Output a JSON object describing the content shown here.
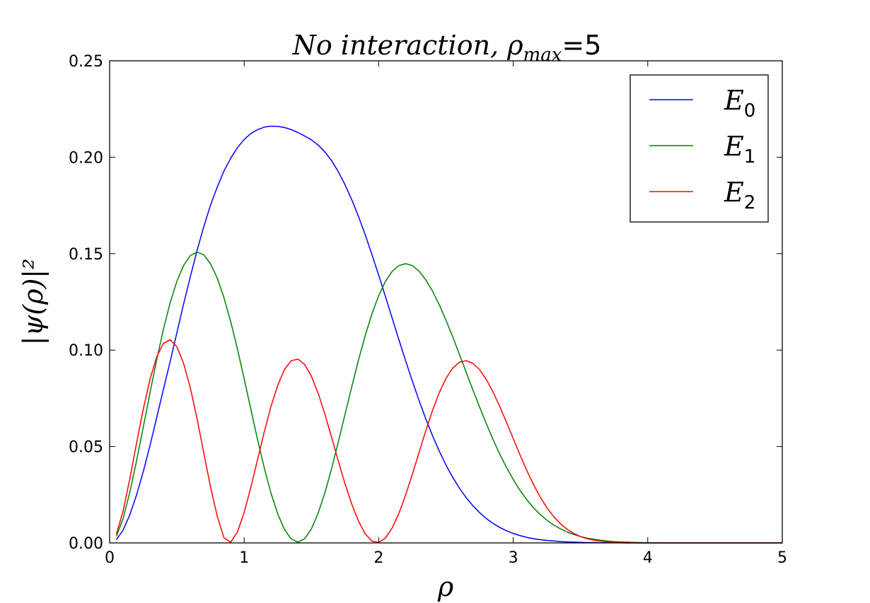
{
  "chart_data": {
    "type": "line",
    "title": "No interaction, ρmax =5",
    "title_parts": {
      "main": "No interaction, ρ",
      "sub": "max",
      "eq": "=",
      "num": "5"
    },
    "xlabel": "ρ",
    "ylabel": "|ψ(ρ)|²",
    "xlim": [
      0,
      5
    ],
    "ylim": [
      0,
      0.25
    ],
    "xticks": [
      "0",
      "1",
      "2",
      "3",
      "4",
      "5"
    ],
    "yticks": [
      "0.00",
      "0.05",
      "0.10",
      "0.15",
      "0.20",
      "0.25"
    ],
    "grid": false,
    "legend_position": "top-right",
    "x": [
      0.05,
      0.1,
      0.15,
      0.2,
      0.25,
      0.3,
      0.35,
      0.4,
      0.45,
      0.5,
      0.55,
      0.6,
      0.65,
      0.7,
      0.75,
      0.8,
      0.85,
      0.9,
      0.95,
      1.0,
      1.05,
      1.1,
      1.15,
      1.2,
      1.25,
      1.3,
      1.35,
      1.4,
      1.45,
      1.5,
      1.55,
      1.6,
      1.65,
      1.7,
      1.75,
      1.8,
      1.85,
      1.9,
      1.95,
      2.0,
      2.05,
      2.1,
      2.15,
      2.2,
      2.25,
      2.3,
      2.35,
      2.4,
      2.45,
      2.5,
      2.55,
      2.6,
      2.65,
      2.7,
      2.75,
      2.8,
      2.85,
      2.9,
      2.95,
      3.0,
      3.05,
      3.1,
      3.15,
      3.2,
      3.25,
      3.3,
      3.35,
      3.4,
      3.45,
      3.5,
      3.55,
      3.6,
      3.65,
      3.7,
      3.75,
      3.8,
      3.85,
      3.9,
      3.95,
      4.0,
      4.05,
      4.1,
      4.15,
      4.2,
      4.25,
      4.3,
      4.35,
      4.4,
      4.45,
      4.5,
      4.55,
      4.6,
      4.65,
      4.7,
      4.75,
      4.8,
      4.85,
      4.9,
      4.95,
      5.0
    ],
    "series": [
      {
        "name": "E0",
        "label_main": "E",
        "label_sub": "0",
        "color": "#0000ff",
        "values": [
          0.0017,
          0.0066,
          0.0145,
          0.0248,
          0.037,
          0.0506,
          0.0651,
          0.0797,
          0.0941,
          0.1091,
          0.1239,
          0.1381,
          0.1516,
          0.164,
          0.1751,
          0.1846,
          0.1929,
          0.1995,
          0.205,
          0.2092,
          0.2123,
          0.2143,
          0.2156,
          0.2161,
          0.216,
          0.2154,
          0.2143,
          0.2128,
          0.211,
          0.209,
          0.2063,
          0.2028,
          0.1982,
          0.1925,
          0.1857,
          0.1779,
          0.1692,
          0.1597,
          0.1495,
          0.1388,
          0.1278,
          0.1166,
          0.1054,
          0.0945,
          0.0839,
          0.0738,
          0.0643,
          0.0556,
          0.0476,
          0.0404,
          0.034,
          0.0284,
          0.0235,
          0.0193,
          0.0157,
          0.0126,
          0.0101,
          0.008,
          0.0063,
          0.0049,
          0.0038,
          0.0029,
          0.0022,
          0.0017,
          0.0013,
          0.001,
          0.0007,
          0.0005,
          0.0004,
          0.0003,
          0.0002,
          0.0002,
          0.0001,
          0.0001,
          0.0001,
          0.0001,
          0.0,
          0.0,
          0.0,
          0.0,
          0.0,
          0.0,
          0.0,
          0.0,
          0.0,
          0.0,
          0.0,
          0.0,
          0.0,
          0.0,
          0.0,
          0.0,
          0.0,
          0.0,
          0.0,
          0.0,
          0.0,
          0.0,
          0.0,
          0.0
        ]
      },
      {
        "name": "E1",
        "label_main": "E",
        "label_sub": "1",
        "color": "#008000",
        "values": [
          0.0034,
          0.0126,
          0.0262,
          0.0425,
          0.0601,
          0.0779,
          0.0951,
          0.1109,
          0.1246,
          0.1357,
          0.1439,
          0.149,
          0.1508,
          0.1494,
          0.1448,
          0.1373,
          0.1271,
          0.1147,
          0.1005,
          0.0851,
          0.0692,
          0.0535,
          0.0388,
          0.0257,
          0.0149,
          0.0069,
          0.002,
          0.0004,
          0.0022,
          0.0073,
          0.0154,
          0.026,
          0.0385,
          0.0523,
          0.0667,
          0.0811,
          0.0949,
          0.1076,
          0.1188,
          0.1282,
          0.1356,
          0.1408,
          0.1438,
          0.1448,
          0.1438,
          0.1409,
          0.1364,
          0.1306,
          0.1235,
          0.1155,
          0.1069,
          0.0978,
          0.0886,
          0.0794,
          0.0704,
          0.0618,
          0.0536,
          0.046,
          0.0391,
          0.0329,
          0.0273,
          0.0225,
          0.0183,
          0.0148,
          0.0118,
          0.0093,
          0.0073,
          0.0057,
          0.0044,
          0.0033,
          0.0025,
          0.0019,
          0.0014,
          0.001,
          0.0007,
          0.0005,
          0.0004,
          0.0003,
          0.0002,
          0.0001,
          0.0001,
          0.0001,
          0.0,
          0.0,
          0.0,
          0.0,
          0.0,
          0.0,
          0.0,
          0.0,
          0.0,
          0.0,
          0.0,
          0.0,
          0.0,
          0.0,
          0.0,
          0.0,
          0.0,
          0.0
        ]
      },
      {
        "name": "E2",
        "label_main": "E",
        "label_sub": "2",
        "color": "#ff0000",
        "values": [
          0.0045,
          0.0165,
          0.0332,
          0.0516,
          0.0694,
          0.0849,
          0.0965,
          0.1035,
          0.1053,
          0.1017,
          0.0931,
          0.0803,
          0.0644,
          0.0467,
          0.0291,
          0.0137,
          0.0026,
          0.0004,
          0.0057,
          0.0158,
          0.0289,
          0.0433,
          0.0577,
          0.0709,
          0.0819,
          0.09,
          0.0945,
          0.0953,
          0.0925,
          0.0864,
          0.0776,
          0.0668,
          0.0548,
          0.0424,
          0.0306,
          0.02,
          0.0112,
          0.0047,
          0.0009,
          0.0003,
          0.0025,
          0.0077,
          0.0152,
          0.0248,
          0.0356,
          0.0469,
          0.0582,
          0.0687,
          0.0779,
          0.0853,
          0.0906,
          0.0937,
          0.0945,
          0.0931,
          0.0898,
          0.0847,
          0.0782,
          0.0707,
          0.0625,
          0.0541,
          0.0457,
          0.0377,
          0.0304,
          0.0239,
          0.0183,
          0.0137,
          0.01,
          0.0071,
          0.0049,
          0.0033,
          0.0022,
          0.0014,
          0.0009,
          0.0006,
          0.0003,
          0.0002,
          0.0001,
          0.0001,
          0.0,
          0.0,
          0.0,
          0.0,
          0.0,
          0.0,
          0.0,
          0.0,
          0.0,
          0.0,
          0.0,
          0.0,
          0.0,
          0.0,
          0.0,
          0.0,
          0.0,
          0.0,
          0.0,
          0.0,
          0.0,
          0.0
        ]
      }
    ]
  }
}
